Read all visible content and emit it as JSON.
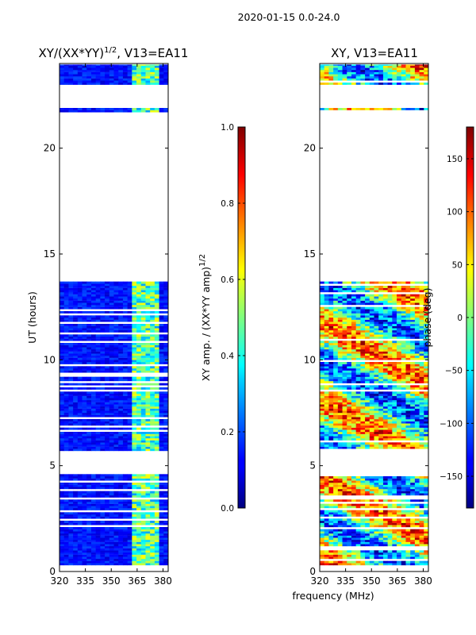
{
  "figure": {
    "suptitle": "2020-01-15 0.0-24.0",
    "shared_xlabel": "frequency (MHz)"
  },
  "chart_data": [
    {
      "type": "heatmap",
      "title": "XY/(XX*YY)",
      "title_exponent": "1/2",
      "title_suffix": ", V13=EA11",
      "xlabel": "frequency (MHz)",
      "ylabel": "UT (hours)",
      "x_ticks": [
        320,
        335,
        350,
        365,
        380
      ],
      "x_tick_labels": [
        "320",
        "335",
        "350",
        "365",
        "380"
      ],
      "xlim": [
        320,
        383
      ],
      "y_ticks": [
        0,
        5,
        10,
        15,
        20
      ],
      "y_tick_labels": [
        "0",
        "5",
        "10",
        "15",
        "20"
      ],
      "ylim": [
        0,
        24
      ],
      "colormap": "jet",
      "colorbar": {
        "label": "XY amp. / (XX*YY amp)",
        "label_exponent": "1/2",
        "range": [
          0.0,
          1.0
        ],
        "ticks": [
          0.0,
          0.2,
          0.4,
          0.6,
          0.8,
          1.0
        ],
        "tick_labels": [
          "0.0",
          "0.2",
          "0.4",
          "0.6",
          "0.8",
          "1.0"
        ]
      },
      "data_time_ranges_hours": [
        [
          0.3,
          4.6
        ],
        [
          5.7,
          13.7
        ],
        [
          21.7,
          21.9
        ],
        [
          23.0,
          23.95
        ]
      ],
      "high_amplitude_freq_band_mhz": [
        362,
        377
      ],
      "typical_value_outside_band": 0.08,
      "typical_value_inside_band": 0.45
    },
    {
      "type": "heatmap",
      "title": "XY, V13=EA11",
      "xlabel": "frequency (MHz)",
      "ylabel": "",
      "x_ticks": [
        320,
        335,
        350,
        365,
        380
      ],
      "x_tick_labels": [
        "320",
        "335",
        "350",
        "365",
        "380"
      ],
      "xlim": [
        320,
        383
      ],
      "y_ticks": [
        0,
        5,
        10,
        15,
        20
      ],
      "y_tick_labels": [
        "0",
        "5",
        "10",
        "15",
        "20"
      ],
      "ylim": [
        0,
        24
      ],
      "colormap": "jet",
      "colorbar": {
        "label": "phase (deg)",
        "range": [
          -180,
          180
        ],
        "ticks": [
          -150,
          -100,
          -50,
          0,
          50,
          100,
          150
        ],
        "tick_labels": [
          "−150",
          "−100",
          "−50",
          "0",
          "50",
          "100",
          "150"
        ]
      },
      "data_time_ranges_hours": [
        [
          0.3,
          4.6
        ],
        [
          5.7,
          13.7
        ],
        [
          21.7,
          21.9
        ],
        [
          23.0,
          23.95
        ]
      ],
      "value_description": "phase in degrees, wrapping across the full colour range"
    }
  ]
}
